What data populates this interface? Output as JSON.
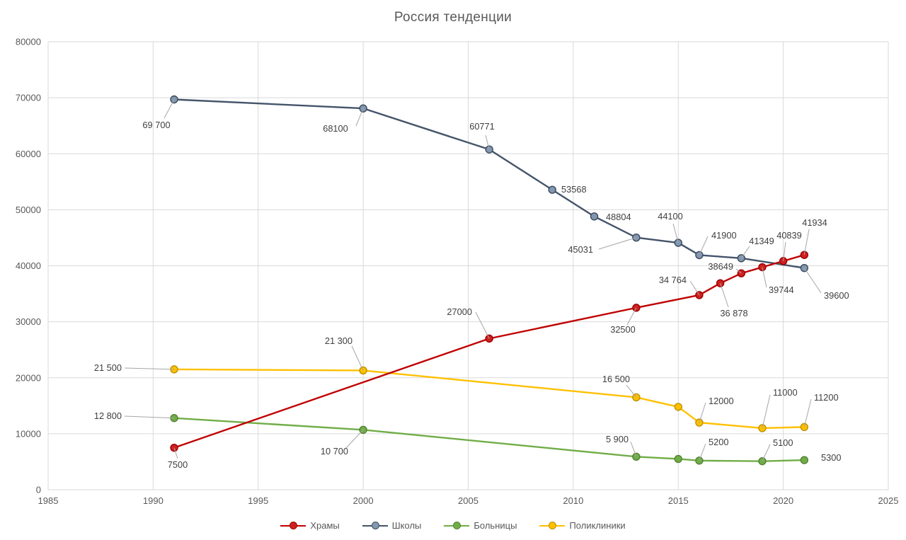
{
  "chart_data": {
    "type": "line",
    "title": "Россия тенденции",
    "xlabel": "",
    "ylabel": "",
    "grid": true,
    "legend_position": "bottom",
    "x_axis": {
      "min": 1985,
      "max": 2025,
      "tick_step": 5,
      "ticks": [
        1985,
        1990,
        1995,
        2000,
        2005,
        2010,
        2015,
        2020,
        2025
      ]
    },
    "y_axis": {
      "min": 0,
      "max": 80000,
      "tick_step": 10000,
      "ticks": [
        0,
        10000,
        20000,
        30000,
        40000,
        50000,
        60000,
        70000,
        80000
      ]
    },
    "colors": {
      "khramy": "#c00000",
      "shkoly": "#44546a",
      "bolnitsy": "#70ad47",
      "polikliniki": "#ffc000",
      "grid": "#d9d9d9",
      "axis_text": "#595959",
      "label_text": "#3f3f3f",
      "leader_line": "#a6a6a6"
    },
    "series": [
      {
        "id": "khramy",
        "name": "Храмы",
        "color": "#c00000",
        "marker_fill": "#cf2020",
        "marker_stroke": "#9c0000",
        "points": [
          {
            "x": 1991,
            "y": 7500,
            "label": "7500"
          },
          {
            "x": 2006,
            "y": 27000,
            "label": "27000"
          },
          {
            "x": 2013,
            "y": 32500,
            "label": "32500"
          },
          {
            "x": 2016,
            "y": 34764,
            "label": "34 764"
          },
          {
            "x": 2017,
            "y": 36878,
            "label": "36 878"
          },
          {
            "x": 2018,
            "y": 38649,
            "label": "38649"
          },
          {
            "x": 2019,
            "y": 39744,
            "label": "39744"
          },
          {
            "x": 2020,
            "y": 40839,
            "label": "40839"
          },
          {
            "x": 2021,
            "y": 41934,
            "label": "41934"
          }
        ]
      },
      {
        "id": "shkoly",
        "name": "Школы",
        "color": "#44546a",
        "marker_fill": "#8497b0",
        "marker_stroke": "#3a4a5e",
        "points": [
          {
            "x": 1991,
            "y": 69700,
            "label": "69 700"
          },
          {
            "x": 2000,
            "y": 68100,
            "label": "68100"
          },
          {
            "x": 2006,
            "y": 60771,
            "label": "60771"
          },
          {
            "x": 2009,
            "y": 53568,
            "label": "53568"
          },
          {
            "x": 2011,
            "y": 48804,
            "label": "48804"
          },
          {
            "x": 2013,
            "y": 45031,
            "label": "45031"
          },
          {
            "x": 2015,
            "y": 44100,
            "label": "44100"
          },
          {
            "x": 2016,
            "y": 41900,
            "label": "41900"
          },
          {
            "x": 2018,
            "y": 41349,
            "label": "41349"
          },
          {
            "x": 2021,
            "y": 39600,
            "label": "39600"
          }
        ]
      },
      {
        "id": "bolnitsy",
        "name": "Больницы",
        "color": "#70ad47",
        "marker_fill": "#70ad47",
        "marker_stroke": "#548235",
        "points": [
          {
            "x": 1991,
            "y": 12800,
            "label": "12 800"
          },
          {
            "x": 2000,
            "y": 10700,
            "label": "10 700"
          },
          {
            "x": 2013,
            "y": 5900,
            "label": "5 900"
          },
          {
            "x": 2015,
            "y": 5500,
            "label": ""
          },
          {
            "x": 2016,
            "y": 5200,
            "label": "5200"
          },
          {
            "x": 2019,
            "y": 5100,
            "label": "5100"
          },
          {
            "x": 2021,
            "y": 5300,
            "label": "5300"
          }
        ]
      },
      {
        "id": "polikliniki",
        "name": "Поликлиники",
        "color": "#ffc000",
        "marker_fill": "#ffc000",
        "marker_stroke": "#bf9000",
        "points": [
          {
            "x": 1991,
            "y": 21500,
            "label": "21 500"
          },
          {
            "x": 2000,
            "y": 21300,
            "label": "21 300"
          },
          {
            "x": 2013,
            "y": 16500,
            "label": "16 500"
          },
          {
            "x": 2015,
            "y": 14800,
            "label": ""
          },
          {
            "x": 2016,
            "y": 12000,
            "label": "12000"
          },
          {
            "x": 2019,
            "y": 11000,
            "label": "11000"
          },
          {
            "x": 2021,
            "y": 11200,
            "label": "11200"
          }
        ]
      }
    ]
  }
}
